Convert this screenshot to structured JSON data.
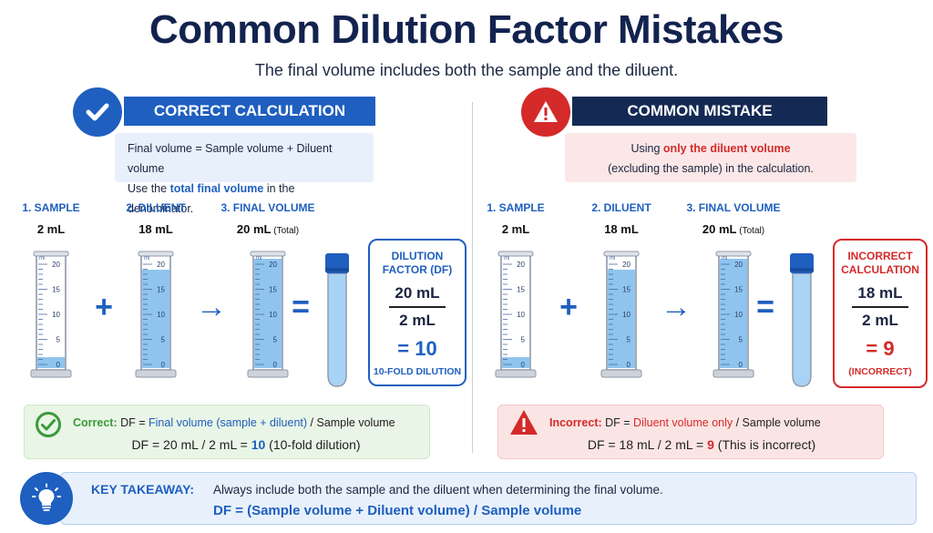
{
  "title": "Common Dilution Factor Mistakes",
  "subtitle": "The final volume includes both the sample and the diluent.",
  "correct": {
    "header": "CORRECT CALCULATION",
    "info_line1": "Final volume = Sample volume + Diluent volume",
    "info_line2_pre": "Use the ",
    "info_line2_hl": "total final volume",
    "info_line2_post": " in the denominator.",
    "steps": [
      {
        "label": "1. SAMPLE",
        "volume": "2 mL",
        "note": "",
        "fill": 0.1
      },
      {
        "label": "2. DILUENT",
        "volume": "18 mL",
        "note": "",
        "fill": 0.9
      },
      {
        "label": "3. FINAL VOLUME",
        "volume": "20 mL",
        "note": "(Total)",
        "fill": 1.0
      }
    ],
    "operators": [
      "+",
      "→",
      "="
    ],
    "df_box": {
      "head": "DILUTION FACTOR (DF)",
      "numerator": "20 mL",
      "denominator": "2 mL",
      "result": "= 10",
      "note": "10-FOLD DILUTION"
    },
    "formula_label": "Correct:",
    "formula_line1_pre": " DF = ",
    "formula_line1_hl": "Final volume (sample + diluent)",
    "formula_line1_post": " / Sample volume",
    "formula_line2_pre": "DF = 20 mL / 2 mL = ",
    "formula_line2_hl": "10",
    "formula_line2_post": " (10-fold dilution)"
  },
  "mistake": {
    "header": "COMMON MISTAKE",
    "info_line1_pre": "Using ",
    "info_line1_hl": "only the diluent volume",
    "info_line2": "(excluding the sample) in the calculation.",
    "steps": [
      {
        "label": "1. SAMPLE",
        "volume": "2 mL",
        "note": "",
        "fill": 0.1
      },
      {
        "label": "2. DILUENT",
        "volume": "18 mL",
        "note": "",
        "fill": 0.9
      },
      {
        "label": "3. FINAL VOLUME",
        "volume": "20 mL",
        "note": "(Total)",
        "fill": 1.0
      }
    ],
    "operators": [
      "+",
      "→",
      "="
    ],
    "df_box": {
      "head": "INCORRECT CALCULATION",
      "numerator": "18 mL",
      "denominator": "2 mL",
      "result": "= 9",
      "note": "(INCORRECT)"
    },
    "formula_label": "Incorrect:",
    "formula_line1_pre": " DF = ",
    "formula_line1_hl": "Diluent volume only",
    "formula_line1_post": " / Sample volume",
    "formula_line2_pre": "DF = 18 mL / 2 mL = ",
    "formula_line2_hl": "9",
    "formula_line2_post": " (This is incorrect)"
  },
  "cylinder_scale": {
    "unit": "ml",
    "ticks": [
      "20",
      "15",
      "10",
      "5",
      "0"
    ]
  },
  "takeaway": {
    "label": "KEY TAKEAWAY:",
    "text": "Always include both the sample and the diluent when determining the final volume.",
    "formula": "DF = (Sample volume + Diluent volume) / Sample volume"
  },
  "colors": {
    "blue": "#1f5fbf",
    "navy": "#142a55",
    "red": "#d42a2a",
    "liquid": "#8fc4ef"
  }
}
